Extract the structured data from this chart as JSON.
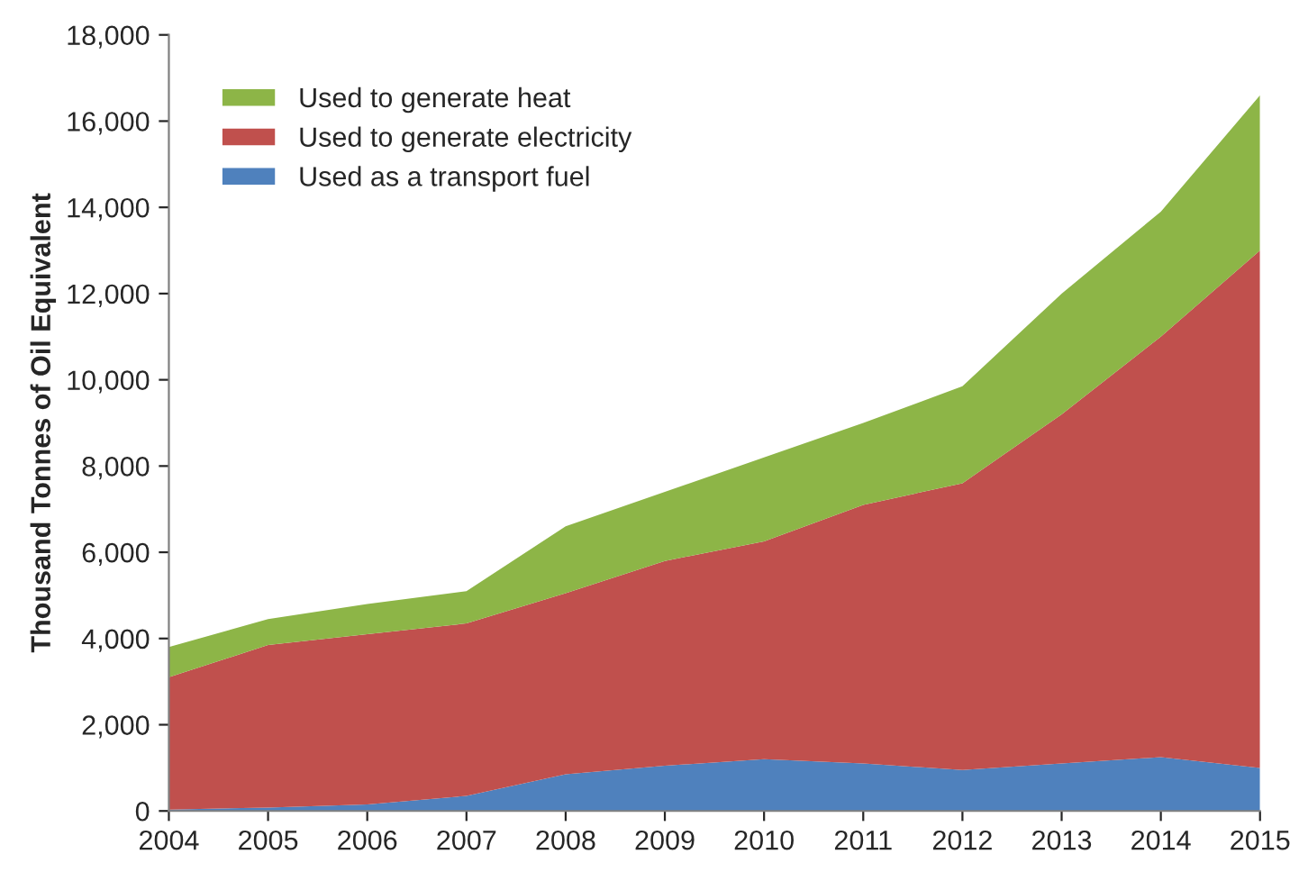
{
  "chart_data": {
    "type": "area",
    "stacked": true,
    "ylabel": "Thousand Tonnes of Oil Equivalent",
    "categories": [
      "2004",
      "2005",
      "2006",
      "2007",
      "2008",
      "2009",
      "2010",
      "2011",
      "2012",
      "2013",
      "2014",
      "2015"
    ],
    "series": [
      {
        "name": "Used as a transport fuel",
        "color": "#4f81bd",
        "values": [
          30,
          80,
          150,
          350,
          850,
          1050,
          1200,
          1100,
          950,
          1100,
          1250,
          1000
        ]
      },
      {
        "name": "Used to generate electricity",
        "color": "#c0504d",
        "values": [
          3070,
          3770,
          3950,
          4000,
          4200,
          4750,
          5050,
          6000,
          6650,
          8100,
          9750,
          12000
        ]
      },
      {
        "name": "Used to generate heat",
        "color": "#8db547",
        "values": [
          700,
          600,
          700,
          750,
          1550,
          1600,
          1950,
          1900,
          2250,
          2800,
          2900,
          3600
        ]
      }
    ],
    "ylim": [
      0,
      18000
    ],
    "yticks": [
      {
        "value": 0,
        "label": "0"
      },
      {
        "value": 2000,
        "label": "2,000"
      },
      {
        "value": 4000,
        "label": "4,000"
      },
      {
        "value": 6000,
        "label": "6,000"
      },
      {
        "value": 8000,
        "label": "8,000"
      },
      {
        "value": 10000,
        "label": "10,000"
      },
      {
        "value": 12000,
        "label": "12,000"
      },
      {
        "value": 14000,
        "label": "14,000"
      },
      {
        "value": 16000,
        "label": "16,000"
      },
      {
        "value": 18000,
        "label": "18,000"
      }
    ],
    "grid": false,
    "legend": "top left"
  }
}
